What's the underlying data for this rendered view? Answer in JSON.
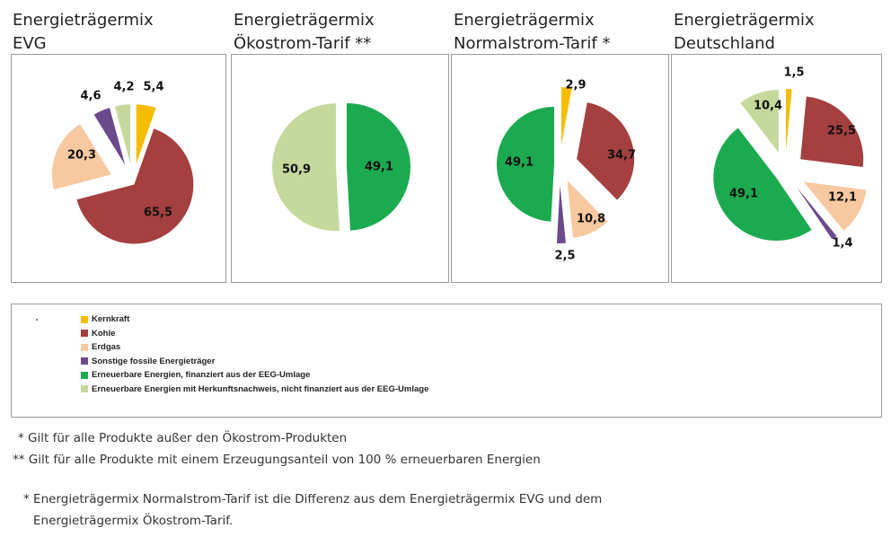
{
  "colors": {
    "Kernkraft": "#F5BD00",
    "Kohle": "#A4403F",
    "Erdgas": "#F8C9A0",
    "Sonstige fossile Energieträger": "#6B4A8C",
    "Erneuerbare Energien, finanziert aus der EEG-Umlage": "#1CAA50",
    "Erneuerbare Energien mit Herkunftsnachweis, nicht finanziert aus der EEG-Umlage": "#C5D99C"
  },
  "chart_data": [
    {
      "type": "pie",
      "title_line1": "Energieträgermix",
      "title_line2": "EVG",
      "slices": [
        {
          "category": "Kernkraft",
          "value": 5.4,
          "label": "5,4"
        },
        {
          "category": "Kohle",
          "value": 65.5,
          "label": "65,5"
        },
        {
          "category": "Erdgas",
          "value": 20.3,
          "label": "20,3"
        },
        {
          "category": "Sonstige fossile Energieträger",
          "value": 4.6,
          "label": "4,6"
        },
        {
          "category": "Erneuerbare Energien mit Herkunftsnachweis, nicht finanziert aus der EEG-Umlage",
          "value": 4.2,
          "label": "4,2"
        }
      ]
    },
    {
      "type": "pie",
      "title_line1": "Energieträgermix",
      "title_line2": "Ökostrom-Tarif **",
      "slices": [
        {
          "category": "Erneuerbare Energien, finanziert aus der EEG-Umlage",
          "value": 49.1,
          "label": "49,1"
        },
        {
          "category": "Erneuerbare Energien mit Herkunftsnachweis, nicht finanziert aus der EEG-Umlage",
          "value": 50.9,
          "label": "50,9"
        }
      ]
    },
    {
      "type": "pie",
      "title_line1": "Energieträgermix",
      "title_line2": "Normalstrom-Tarif *",
      "slices": [
        {
          "category": "Kernkraft",
          "value": 2.9,
          "label": "2,9"
        },
        {
          "category": "Kohle",
          "value": 34.7,
          "label": "34,7"
        },
        {
          "category": "Erdgas",
          "value": 10.8,
          "label": "10,8"
        },
        {
          "category": "Sonstige fossile Energieträger",
          "value": 2.5,
          "label": "2,5"
        },
        {
          "category": "Erneuerbare Energien, finanziert aus der EEG-Umlage",
          "value": 49.1,
          "label": "49,1"
        }
      ]
    },
    {
      "type": "pie",
      "title_line1": "Energieträgermix",
      "title_line2": "Deutschland",
      "slices": [
        {
          "category": "Kernkraft",
          "value": 1.5,
          "label": "1,5"
        },
        {
          "category": "Kohle",
          "value": 25.5,
          "label": "25,5"
        },
        {
          "category": "Erdgas",
          "value": 12.1,
          "label": "12,1"
        },
        {
          "category": "Sonstige fossile Energieträger",
          "value": 1.4,
          "label": "1,4"
        },
        {
          "category": "Erneuerbare Energien, finanziert aus der EEG-Umlage",
          "value": 49.1,
          "label": "49,1"
        },
        {
          "category": "Erneuerbare Energien mit Herkunftsnachweis, nicht finanziert aus der EEG-Umlage",
          "value": 10.4,
          "label": "10,4"
        }
      ]
    }
  ],
  "legend": {
    "items": [
      {
        "label": "Kernkraft",
        "category": "Kernkraft"
      },
      {
        "label": "Kohle",
        "category": "Kohle"
      },
      {
        "label": "Erdgas",
        "category": "Erdgas"
      },
      {
        "label": "Sonstige fossile Energieträger",
        "category": "Sonstige fossile Energieträger"
      },
      {
        "label": "Erneuerbare Energien, finanziert aus der EEG-Umlage",
        "category": "Erneuerbare Energien, finanziert aus der EEG-Umlage"
      },
      {
        "label": "Erneuerbare Energien mit Herkunftsnachweis, nicht finanziert aus der EEG-Umlage",
        "category": "Erneuerbare Energien mit Herkunftsnachweis, nicht finanziert aus der EEG-Umlage"
      }
    ]
  },
  "footnotes": {
    "note1": "* Gilt für alle Produkte außer den Ökostrom-Produkten",
    "note2": "** Gilt für alle Produkte mit einem Erzeugungsanteil von 100 % erneuerbaren Energien",
    "note3_line1": "* Energieträgermix Normalstrom-Tarif ist die Differenz aus dem Energieträgermix  EVG und dem",
    "note3_line2": "Energieträgermix Ökostrom-Tarif."
  }
}
